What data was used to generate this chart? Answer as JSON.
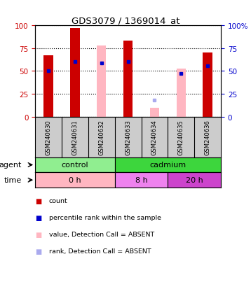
{
  "title": "GDS3079 / 1369014_at",
  "samples": [
    "GSM240630",
    "GSM240631",
    "GSM240632",
    "GSM240633",
    "GSM240634",
    "GSM240635",
    "GSM240636"
  ],
  "red_bars": [
    67,
    97,
    0,
    83,
    0,
    0,
    70
  ],
  "pink_bars": [
    0,
    0,
    78,
    0,
    10,
    53,
    0
  ],
  "blue_squares": [
    50,
    60,
    59,
    60,
    0,
    47,
    56
  ],
  "light_blue_squares": [
    0,
    0,
    0,
    0,
    18,
    0,
    0
  ],
  "agent_groups": [
    {
      "label": "control",
      "start": 0,
      "end": 3,
      "color": "#90EE90"
    },
    {
      "label": "cadmium",
      "start": 3,
      "end": 7,
      "color": "#3DD63D"
    }
  ],
  "time_groups": [
    {
      "label": "0 h",
      "start": 0,
      "end": 3,
      "color": "#FFB6C1"
    },
    {
      "label": "8 h",
      "start": 3,
      "end": 5,
      "color": "#EE82EE"
    },
    {
      "label": "20 h",
      "start": 5,
      "end": 7,
      "color": "#CC44CC"
    }
  ],
  "ylim": [
    0,
    100
  ],
  "yticks": [
    0,
    25,
    50,
    75,
    100
  ],
  "bar_width": 0.35,
  "bg_color": "#FFFFFF",
  "left_tick_color": "#CC0000",
  "right_tick_color": "#0000CC",
  "sample_bg_color": "#CCCCCC",
  "left_ytick_labels": [
    "0",
    "25",
    "50",
    "75",
    "100"
  ],
  "right_ytick_labels": [
    "0",
    "25",
    "50",
    "75",
    "100%"
  ]
}
